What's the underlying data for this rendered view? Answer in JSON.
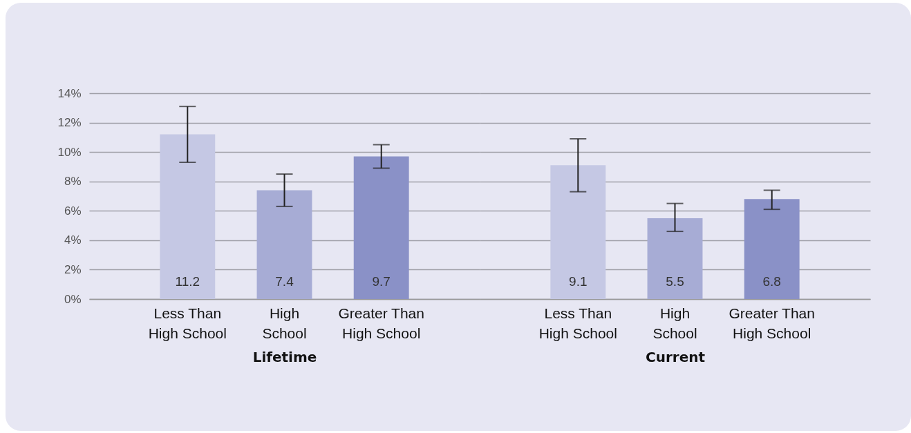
{
  "chart_data": [
    {
      "type": "bar",
      "xlabel": "Lifetime",
      "categories": [
        "Less Than High School",
        "High School",
        "Greater Than High School"
      ],
      "values": [
        11.2,
        7.4,
        9.7
      ],
      "colors": [
        "#c5c8e4",
        "#a7acd5",
        "#8a91c7"
      ],
      "errors": [
        [
          9.3,
          13.1
        ],
        [
          6.3,
          8.5
        ],
        [
          8.9,
          10.5
        ]
      ],
      "data_labels": true,
      "grid": "y",
      "ylim": [
        0,
        14
      ],
      "yticks": [
        {
          "value": 0,
          "label": "0%"
        },
        {
          "value": 2,
          "label": "2%"
        },
        {
          "value": 4,
          "label": "4%"
        },
        {
          "value": 6,
          "label": "6%"
        },
        {
          "value": 8,
          "label": "8%"
        },
        {
          "value": 10,
          "label": "10%"
        },
        {
          "value": 12,
          "label": "12%"
        },
        {
          "value": 14,
          "label": "14%"
        }
      ]
    },
    {
      "type": "bar",
      "xlabel": "Current",
      "categories": [
        "Less Than High School",
        "High School",
        "Greater Than High School"
      ],
      "values": [
        9.1,
        5.5,
        6.8
      ],
      "colors": [
        "#c5c8e4",
        "#a7acd5",
        "#8a91c7"
      ],
      "errors": [
        [
          7.3,
          10.9
        ],
        [
          4.6,
          6.5
        ],
        [
          6.1,
          7.4
        ]
      ],
      "data_labels": true,
      "grid": "y",
      "ylim": [
        0,
        14
      ],
      "tick_labels": "x",
      "yticks": [
        0,
        2,
        4,
        6,
        8,
        10,
        12,
        14
      ]
    }
  ]
}
